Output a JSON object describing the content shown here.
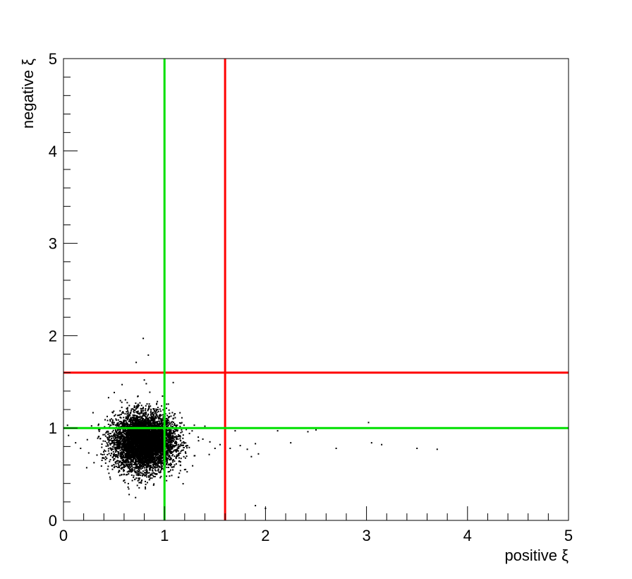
{
  "chart_data": {
    "type": "scatter",
    "title": "",
    "xlabel": "positive ξ",
    "ylabel": "negative ξ",
    "xlim": [
      0,
      5
    ],
    "ylim": [
      0,
      5
    ],
    "x_ticks": [
      "0",
      "1",
      "2",
      "3",
      "4",
      "5"
    ],
    "y_ticks": [
      "0",
      "1",
      "2",
      "3",
      "4",
      "5"
    ],
    "grid": false,
    "legend": "none",
    "cluster": {
      "center_x": 0.8,
      "center_y": 0.85,
      "spread_x": 0.15,
      "spread_y": 0.15,
      "approx_points": 6000
    },
    "points": [
      {
        "x": 0.79,
        "y": 1.97
      },
      {
        "x": 0.84,
        "y": 1.79
      },
      {
        "x": 0.72,
        "y": 1.71
      },
      {
        "x": 0.58,
        "y": 1.47
      },
      {
        "x": 0.8,
        "y": 1.52
      },
      {
        "x": 0.82,
        "y": 1.48
      },
      {
        "x": 0.04,
        "y": 1.03
      },
      {
        "x": 0.05,
        "y": 0.92
      },
      {
        "x": 0.12,
        "y": 0.84
      },
      {
        "x": 0.17,
        "y": 0.78
      },
      {
        "x": 0.23,
        "y": 0.57
      },
      {
        "x": 0.25,
        "y": 0.73
      },
      {
        "x": 0.45,
        "y": 0.51
      },
      {
        "x": 0.64,
        "y": 0.36
      },
      {
        "x": 0.65,
        "y": 0.28
      },
      {
        "x": 0.76,
        "y": 0.41
      },
      {
        "x": 0.81,
        "y": 0.36
      },
      {
        "x": 0.85,
        "y": 0.44
      },
      {
        "x": 1.05,
        "y": 0.48
      },
      {
        "x": 1.1,
        "y": 0.6
      },
      {
        "x": 1.2,
        "y": 0.55
      },
      {
        "x": 1.3,
        "y": 0.7
      },
      {
        "x": 1.38,
        "y": 0.88
      },
      {
        "x": 1.4,
        "y": 1.02
      },
      {
        "x": 1.45,
        "y": 0.85
      },
      {
        "x": 1.5,
        "y": 0.78
      },
      {
        "x": 1.55,
        "y": 0.82
      },
      {
        "x": 1.6,
        "y": 0.72
      },
      {
        "x": 1.65,
        "y": 0.78
      },
      {
        "x": 1.7,
        "y": 0.97
      },
      {
        "x": 1.75,
        "y": 0.81
      },
      {
        "x": 1.82,
        "y": 0.77
      },
      {
        "x": 1.83,
        "y": 1.0
      },
      {
        "x": 1.86,
        "y": 0.69
      },
      {
        "x": 1.9,
        "y": 0.83
      },
      {
        "x": 1.93,
        "y": 0.72
      },
      {
        "x": 1.9,
        "y": 0.16
      },
      {
        "x": 2.0,
        "y": 0.13
      },
      {
        "x": 2.12,
        "y": 0.97
      },
      {
        "x": 2.25,
        "y": 0.84
      },
      {
        "x": 2.42,
        "y": 0.96
      },
      {
        "x": 2.5,
        "y": 0.98
      },
      {
        "x": 2.7,
        "y": 0.78
      },
      {
        "x": 3.02,
        "y": 1.06
      },
      {
        "x": 3.05,
        "y": 0.84
      },
      {
        "x": 3.15,
        "y": 0.82
      },
      {
        "x": 3.5,
        "y": 0.78
      },
      {
        "x": 3.7,
        "y": 0.77
      }
    ],
    "lines": [
      {
        "color": "#ff0000",
        "orientation": "vertical",
        "value": 1.6
      },
      {
        "color": "#ff0000",
        "orientation": "horizontal",
        "value": 1.6
      },
      {
        "color": "#00e000",
        "orientation": "vertical",
        "value": 1.0
      },
      {
        "color": "#00e000",
        "orientation": "horizontal",
        "value": 1.0
      }
    ]
  }
}
